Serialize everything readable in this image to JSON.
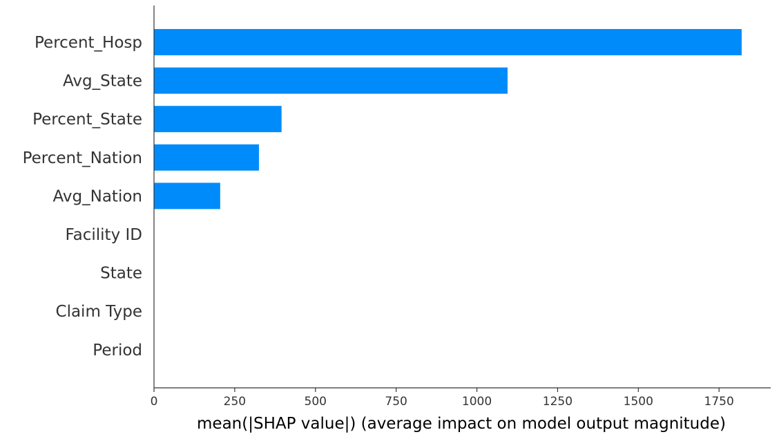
{
  "chart_data": {
    "type": "bar",
    "orientation": "horizontal",
    "categories": [
      "Percent_Hosp",
      "Avg_State",
      "Percent_State",
      "Percent_Nation",
      "Avg_Nation",
      "Facility ID",
      "State",
      "Claim Type",
      "Period"
    ],
    "values": [
      1820,
      1095,
      395,
      325,
      205,
      0,
      0,
      0,
      0
    ],
    "title": "",
    "xlabel": "mean(|SHAP value|) (average impact on model output magnitude)",
    "ylabel": "",
    "xlim": [
      0,
      1910
    ],
    "xticks": [
      0,
      250,
      500,
      750,
      1000,
      1250,
      1500,
      1750
    ],
    "bar_color": "#008bfb",
    "grid": false,
    "legend": "none"
  }
}
